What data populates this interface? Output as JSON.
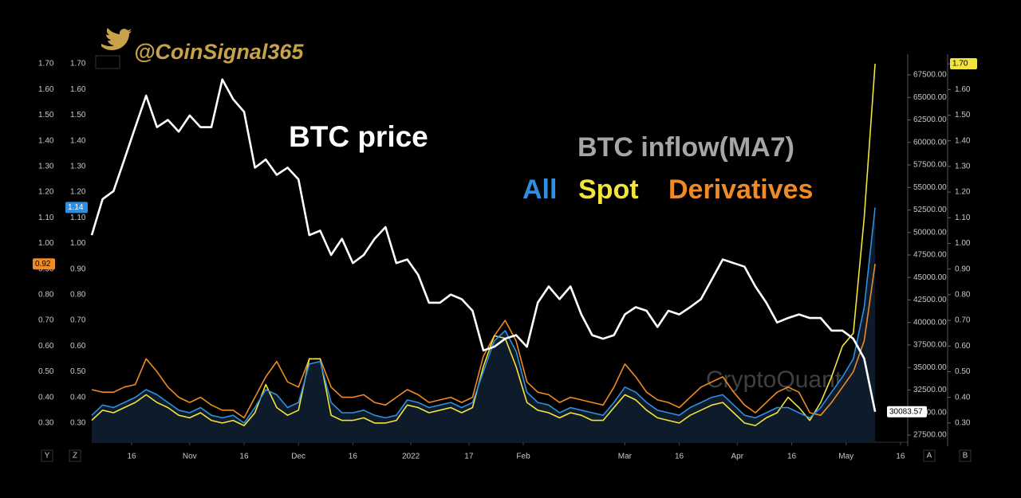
{
  "chart_data": {
    "type": "line",
    "handle": "@CoinSignal365",
    "annotation": "BTC inflow(MA7)",
    "watermark": "CryptoQuant",
    "controls": [
      "Y",
      "Z",
      "A",
      "B"
    ],
    "x": [
      4,
      7,
      10,
      13,
      16,
      19,
      22,
      25,
      28,
      31,
      34,
      37,
      40,
      43,
      46,
      49,
      52,
      55,
      58,
      61,
      64,
      67,
      70,
      73,
      76,
      79,
      82,
      85,
      88,
      91,
      94,
      97,
      100,
      103,
      106,
      109,
      112,
      115,
      118,
      121,
      124,
      127,
      130,
      133,
      136,
      139,
      142,
      145,
      148,
      151,
      154,
      157,
      160,
      163,
      166,
      169,
      172,
      175,
      178,
      181,
      184,
      187,
      190,
      193,
      196,
      199,
      202,
      205,
      208,
      211,
      214,
      217,
      220
    ],
    "xlim": [
      4,
      229
    ],
    "xticks": [
      {
        "value": 15,
        "label": "16"
      },
      {
        "value": 31,
        "label": "Nov"
      },
      {
        "value": 46,
        "label": "16"
      },
      {
        "value": 61,
        "label": "Dec"
      },
      {
        "value": 76,
        "label": "16"
      },
      {
        "value": 92,
        "label": "2022"
      },
      {
        "value": 108,
        "label": "17"
      },
      {
        "value": 123,
        "label": "Feb"
      },
      {
        "value": 151,
        "label": "Mar"
      },
      {
        "value": 166,
        "label": "16"
      },
      {
        "value": 182,
        "label": "Apr"
      },
      {
        "value": 197,
        "label": "16"
      },
      {
        "value": 212,
        "label": "May"
      },
      {
        "value": 227,
        "label": "16"
      }
    ],
    "ylim": [
      0.225,
      1.725
    ],
    "yticks": [
      {
        "value": 0.3,
        "label": "0.30"
      },
      {
        "value": 0.4,
        "label": "0.40"
      },
      {
        "value": 0.5,
        "label": "0.50"
      },
      {
        "value": 0.6,
        "label": "0.60"
      },
      {
        "value": 0.7,
        "label": "0.70"
      },
      {
        "value": 0.8,
        "label": "0.80"
      },
      {
        "value": 0.9,
        "label": "0.90"
      },
      {
        "value": 1.0,
        "label": "1.00"
      },
      {
        "value": 1.1,
        "label": "1.10"
      },
      {
        "value": 1.2,
        "label": "1.20"
      },
      {
        "value": 1.3,
        "label": "1.30"
      },
      {
        "value": 1.4,
        "label": "1.40"
      },
      {
        "value": 1.5,
        "label": "1.50"
      },
      {
        "value": 1.6,
        "label": "1.60"
      },
      {
        "value": 1.7,
        "label": "1.70"
      }
    ],
    "y2lim": [
      26700,
      69450
    ],
    "y2ticks": [
      {
        "value": 27500,
        "label": "27500.00"
      },
      {
        "value": 30000,
        "label": "30000.00"
      },
      {
        "value": 32500,
        "label": "32500.00"
      },
      {
        "value": 35000,
        "label": "35000.00"
      },
      {
        "value": 37500,
        "label": "37500.00"
      },
      {
        "value": 40000,
        "label": "40000.00"
      },
      {
        "value": 42500,
        "label": "42500.00"
      },
      {
        "value": 45000,
        "label": "45000.00"
      },
      {
        "value": 47500,
        "label": "47500.00"
      },
      {
        "value": 50000,
        "label": "50000.00"
      },
      {
        "value": 52500,
        "label": "52500.00"
      },
      {
        "value": 55000,
        "label": "55000.00"
      },
      {
        "value": 57500,
        "label": "57500.00"
      },
      {
        "value": 60000,
        "label": "60000.00"
      },
      {
        "value": 62500,
        "label": "62500.00"
      },
      {
        "value": 65000,
        "label": "65000.00"
      },
      {
        "value": 67500,
        "label": "67500.00"
      }
    ],
    "series": [
      {
        "name": "BTC price",
        "color": "#ffffff",
        "axis": "y2",
        "last_label": "30083.57",
        "values": [
          49700,
          53700,
          54600,
          58100,
          61700,
          65200,
          61700,
          62500,
          61200,
          63000,
          61700,
          61700,
          67000,
          64800,
          63400,
          57200,
          58100,
          56400,
          57200,
          55900,
          49700,
          50200,
          47500,
          49300,
          46600,
          47500,
          49300,
          50600,
          46600,
          47000,
          45300,
          42200,
          42200,
          43100,
          42600,
          41300,
          36900,
          37300,
          38200,
          38600,
          37300,
          42200,
          44000,
          42600,
          44000,
          40900,
          38600,
          38200,
          38600,
          40900,
          41700,
          41300,
          39500,
          41300,
          40900,
          41700,
          42600,
          44800,
          47000,
          46600,
          46200,
          44000,
          42200,
          40000,
          40500,
          40900,
          40500,
          40500,
          39100,
          39100,
          38200,
          36000,
          30083.57
        ]
      },
      {
        "name": "All",
        "color": "#2e8fe0",
        "last_label": "1.14",
        "values": [
          0.33,
          0.37,
          0.36,
          0.38,
          0.4,
          0.43,
          0.41,
          0.38,
          0.35,
          0.34,
          0.36,
          0.33,
          0.32,
          0.33,
          0.3,
          0.36,
          0.43,
          0.41,
          0.36,
          0.38,
          0.53,
          0.54,
          0.38,
          0.34,
          0.34,
          0.35,
          0.33,
          0.32,
          0.33,
          0.39,
          0.38,
          0.36,
          0.37,
          0.38,
          0.36,
          0.38,
          0.5,
          0.62,
          0.66,
          0.58,
          0.42,
          0.38,
          0.37,
          0.34,
          0.36,
          0.35,
          0.34,
          0.33,
          0.38,
          0.44,
          0.42,
          0.38,
          0.35,
          0.34,
          0.33,
          0.36,
          0.38,
          0.4,
          0.41,
          0.37,
          0.33,
          0.32,
          0.34,
          0.36,
          0.36,
          0.34,
          0.32,
          0.36,
          0.42,
          0.48,
          0.55,
          0.75,
          1.14
        ]
      },
      {
        "name": "Spot",
        "color": "#f2e43a",
        "last_label": "1.70",
        "values": [
          0.31,
          0.35,
          0.34,
          0.36,
          0.38,
          0.41,
          0.38,
          0.36,
          0.33,
          0.32,
          0.34,
          0.31,
          0.3,
          0.31,
          0.29,
          0.34,
          0.45,
          0.36,
          0.33,
          0.35,
          0.55,
          0.55,
          0.33,
          0.31,
          0.31,
          0.32,
          0.3,
          0.3,
          0.31,
          0.37,
          0.36,
          0.34,
          0.35,
          0.36,
          0.34,
          0.36,
          0.52,
          0.64,
          0.63,
          0.52,
          0.38,
          0.35,
          0.34,
          0.32,
          0.34,
          0.33,
          0.31,
          0.31,
          0.36,
          0.41,
          0.39,
          0.35,
          0.32,
          0.31,
          0.3,
          0.33,
          0.35,
          0.37,
          0.38,
          0.34,
          0.3,
          0.29,
          0.32,
          0.34,
          0.4,
          0.36,
          0.31,
          0.38,
          0.48,
          0.6,
          0.65,
          1.1,
          1.7
        ]
      },
      {
        "name": "Derivatives",
        "color": "#f08a24",
        "last_label": "0.92",
        "values": [
          0.43,
          0.42,
          0.42,
          0.44,
          0.45,
          0.55,
          0.5,
          0.44,
          0.4,
          0.38,
          0.4,
          0.37,
          0.35,
          0.35,
          0.32,
          0.4,
          0.48,
          0.54,
          0.46,
          0.44,
          0.55,
          0.55,
          0.44,
          0.4,
          0.4,
          0.41,
          0.38,
          0.37,
          0.4,
          0.43,
          0.41,
          0.38,
          0.39,
          0.4,
          0.38,
          0.4,
          0.56,
          0.64,
          0.7,
          0.62,
          0.46,
          0.42,
          0.41,
          0.38,
          0.4,
          0.39,
          0.38,
          0.37,
          0.44,
          0.53,
          0.48,
          0.42,
          0.39,
          0.38,
          0.36,
          0.4,
          0.44,
          0.46,
          0.48,
          0.42,
          0.37,
          0.34,
          0.38,
          0.42,
          0.44,
          0.42,
          0.34,
          0.33,
          0.38,
          0.44,
          0.5,
          0.62,
          0.92
        ]
      }
    ]
  }
}
